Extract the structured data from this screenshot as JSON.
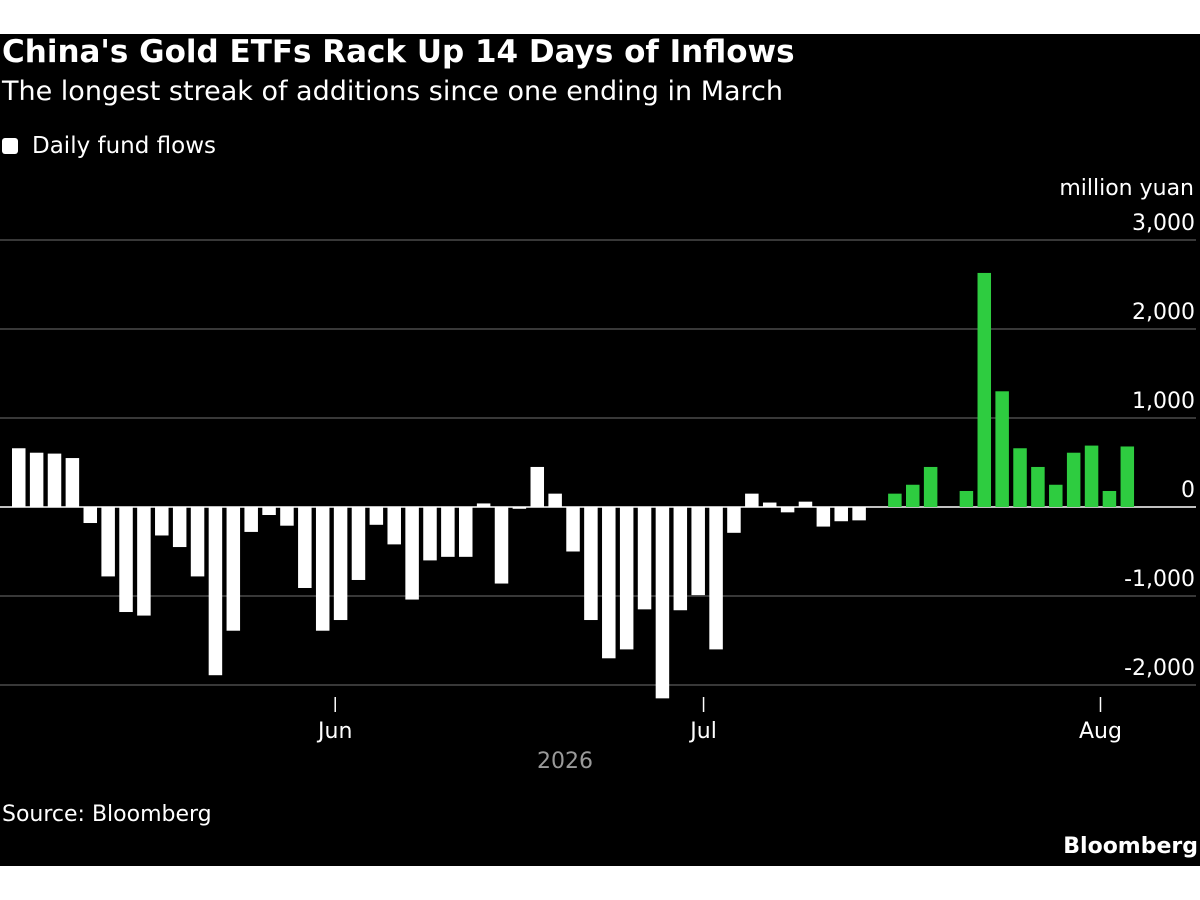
{
  "chart_data": {
    "type": "bar",
    "title": "China's Gold ETFs Rack Up 14 Days of Inflows",
    "subtitle": "The longest streak of additions since one ending in March",
    "legend": "Daily fund flows",
    "ylabel": "million yuan",
    "ylim": [
      -2300,
      3000
    ],
    "yticks": [
      3000,
      2000,
      1000,
      0,
      -1000,
      -2000
    ],
    "ytick_labels": [
      "3,000",
      "2,000",
      "1,000",
      "0",
      "-1,000",
      "-2,000"
    ],
    "xticks": [
      {
        "label": "Jun",
        "index": 17.7
      },
      {
        "label": "Jul",
        "index": 38.3
      },
      {
        "label": "Aug",
        "index": 60.5
      }
    ],
    "year_label": "2026",
    "grid": true,
    "colors": {
      "outflow": "#ffffff",
      "inflow": "#2ecc40",
      "grid": "#5a5a5a",
      "background": "#000000"
    },
    "values": [
      660,
      610,
      600,
      550,
      -180,
      -780,
      -1180,
      -1220,
      -320,
      -450,
      -780,
      -1890,
      -1390,
      -280,
      -90,
      -210,
      -910,
      -1390,
      -1270,
      -820,
      -200,
      -420,
      -1040,
      -600,
      -560,
      -560,
      40,
      -860,
      -20,
      450,
      150,
      -500,
      -1270,
      -1700,
      -1600,
      -1150,
      -2150,
      -1160,
      -990,
      -1600,
      -290,
      150,
      50,
      -60,
      60,
      -220,
      -160,
      -150,
      0,
      150,
      250,
      450,
      0,
      180,
      2630,
      1300,
      660,
      450,
      250,
      610,
      690,
      180,
      680
    ],
    "inflow_streak_start_index": 49,
    "source": "Source: Bloomberg",
    "brand": "Bloomberg"
  }
}
